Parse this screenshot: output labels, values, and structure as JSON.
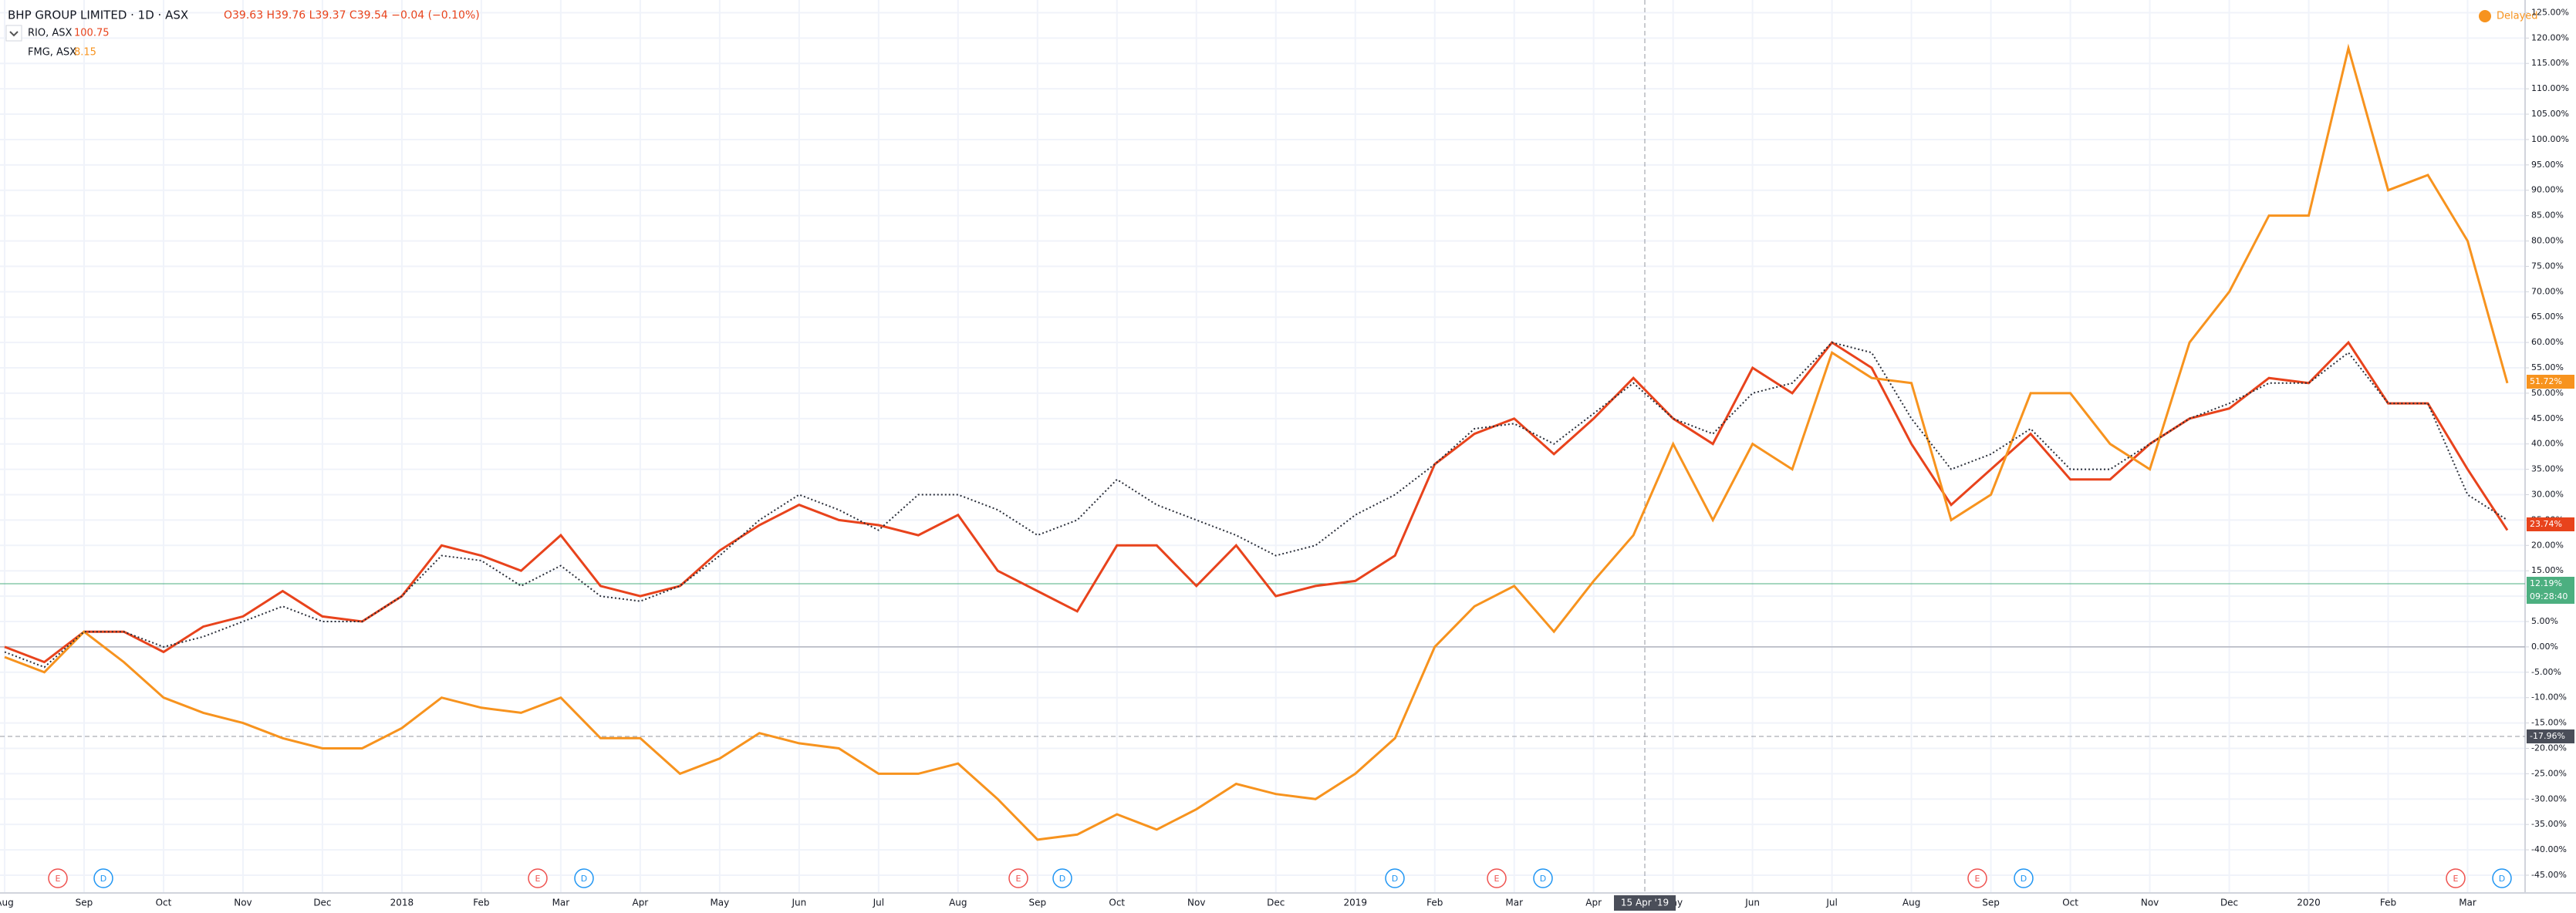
{
  "header": {
    "title": "BHP GROUP LIMITED · 1D · ASX",
    "ohlc": "O39.63 H39.76 L39.37 C39.54 −0.04 (−0.10%)",
    "status": "Delayed"
  },
  "chart_data": {
    "type": "line",
    "categories": [
      "Aug",
      null,
      "Sep",
      null,
      "Oct",
      null,
      "Nov",
      null,
      "Dec",
      null,
      "2018",
      null,
      "Feb",
      null,
      "Mar",
      null,
      "Apr",
      null,
      "May",
      null,
      "Jun",
      null,
      "Jul",
      null,
      "Aug",
      null,
      "Sep",
      null,
      "Oct",
      null,
      "Nov",
      null,
      "Dec",
      null,
      "2019",
      null,
      "Feb",
      null,
      "Mar",
      null,
      "Apr",
      null,
      "May",
      null,
      "Jun",
      null,
      "Jul",
      null,
      "Aug",
      null,
      "Sep",
      null,
      "Oct",
      null,
      "Nov",
      null,
      "Dec",
      null,
      "2020",
      null,
      "Feb",
      null,
      "Mar",
      null
    ],
    "series": [
      {
        "name": "RIO, ASX",
        "last": "100.75",
        "color": "#e8431c",
        "values": [
          0,
          -3,
          3,
          3,
          -1,
          4,
          6,
          11,
          6,
          5,
          10,
          20,
          18,
          15,
          22,
          12,
          10,
          12,
          19,
          24,
          28,
          25,
          24,
          22,
          26,
          15,
          11,
          7,
          20,
          20,
          12,
          20,
          10,
          12,
          13,
          18,
          36,
          42,
          45,
          38,
          45,
          53,
          45,
          40,
          55,
          50,
          60,
          55,
          40,
          28,
          35,
          42,
          33,
          33,
          40,
          45,
          47,
          53,
          52,
          60,
          48,
          48,
          35,
          23
        ]
      },
      {
        "name": "FMG, ASX",
        "last": "8.15",
        "color": "#f7931e",
        "values": [
          -2,
          -5,
          3,
          -3,
          -10,
          -13,
          -15,
          -18,
          -20,
          -20,
          -16,
          -10,
          -12,
          -13,
          -10,
          -18,
          -18,
          -25,
          -22,
          -17,
          -19,
          -20,
          -25,
          -25,
          -23,
          -30,
          -38,
          -37,
          -33,
          -36,
          -32,
          -27,
          -29,
          -30,
          -25,
          -18,
          0,
          8,
          12,
          3,
          13,
          22,
          40,
          25,
          40,
          35,
          58,
          53,
          52,
          25,
          30,
          50,
          50,
          40,
          35,
          60,
          70,
          85,
          85,
          118,
          90,
          93,
          80,
          52
        ]
      },
      {
        "name": "BHP GROUP LIMITED",
        "color": "#2a2e39",
        "values": [
          -1,
          -4,
          3,
          3,
          0,
          2,
          5,
          8,
          5,
          5,
          10,
          18,
          17,
          12,
          16,
          10,
          9,
          12,
          18,
          25,
          30,
          27,
          23,
          30,
          30,
          27,
          22,
          25,
          33,
          28,
          25,
          22,
          18,
          20,
          26,
          30,
          36,
          43,
          44,
          40,
          46,
          52,
          45,
          42,
          50,
          52,
          60,
          58,
          45,
          35,
          38,
          43,
          35,
          35,
          40,
          45,
          48,
          52,
          52,
          58,
          48,
          48,
          30,
          25
        ]
      }
    ],
    "ylim": [
      -48.5,
      127.5
    ],
    "yticks": [
      {
        "value": -45,
        "label": "-45.00%"
      },
      {
        "value": -40,
        "label": "-40.00%"
      },
      {
        "value": -35,
        "label": "-35.00%"
      },
      {
        "value": -30,
        "label": "-30.00%"
      },
      {
        "value": -25,
        "label": "-25.00%"
      },
      {
        "value": -20,
        "label": "-20.00%"
      },
      {
        "value": -15,
        "label": "-15.00%"
      },
      {
        "value": -10,
        "label": "-10.00%"
      },
      {
        "value": -5,
        "label": "-5.00%"
      },
      {
        "value": 0,
        "label": "0.00%"
      },
      {
        "value": 5,
        "label": "5.00%"
      },
      {
        "value": 10,
        "label": "10.00%"
      },
      {
        "value": 15,
        "label": "15.00%"
      },
      {
        "value": 20,
        "label": "20.00%"
      },
      {
        "value": 25,
        "label": "25.00%"
      },
      {
        "value": 30,
        "label": "30.00%"
      },
      {
        "value": 35,
        "label": "35.00%"
      },
      {
        "value": 40,
        "label": "40.00%"
      },
      {
        "value": 45,
        "label": "45.00%"
      },
      {
        "value": 50,
        "label": "50.00%"
      },
      {
        "value": 55,
        "label": "55.00%"
      },
      {
        "value": 60,
        "label": "60.00%"
      },
      {
        "value": 65,
        "label": "65.00%"
      },
      {
        "value": 70,
        "label": "70.00%"
      },
      {
        "value": 75,
        "label": "75.00%"
      },
      {
        "value": 80,
        "label": "80.00%"
      },
      {
        "value": 85,
        "label": "85.00%"
      },
      {
        "value": 90,
        "label": "90.00%"
      },
      {
        "value": 95,
        "label": "95.00%"
      },
      {
        "value": 100,
        "label": "100.00%"
      },
      {
        "value": 105,
        "label": "105.00%"
      },
      {
        "value": 110,
        "label": "110.00%"
      },
      {
        "value": 115,
        "label": "115.00%"
      },
      {
        "value": 120,
        "label": "120.00%"
      },
      {
        "value": 125,
        "label": "125.00%"
      }
    ],
    "grid": true
  },
  "price_labels": [
    {
      "text": "51.72%",
      "color": "#f7931e"
    },
    {
      "text": "23.74%",
      "color": "#e8431c"
    },
    {
      "text": "12.19%",
      "color": "#4caf80"
    },
    {
      "text": "09:28:40",
      "color": "#4caf80"
    },
    {
      "text": "-17.96%",
      "color": "#4a4e59"
    }
  ],
  "crosshair_date": "15 Apr '19",
  "events": [
    "E",
    "D",
    "E",
    "D",
    "E",
    "D",
    "D",
    "E",
    "D",
    "E",
    "D",
    "E",
    "D"
  ]
}
